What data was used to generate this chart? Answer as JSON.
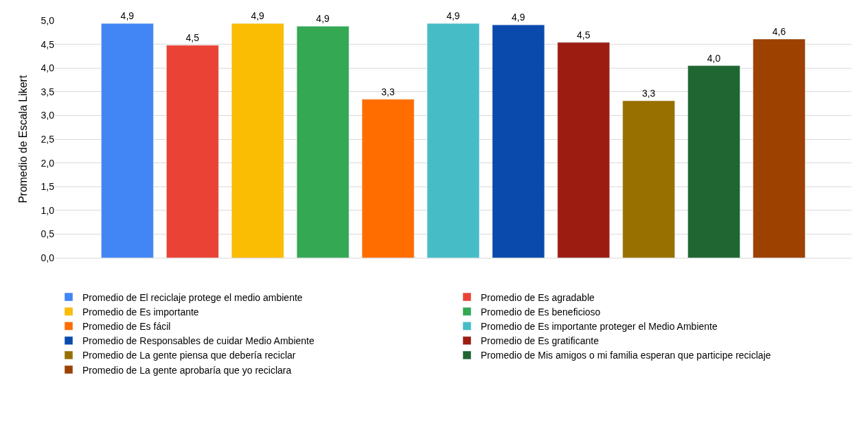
{
  "chart_data": {
    "type": "bar",
    "ylabel": "Promedio de Escala Likert",
    "categories": [
      null
    ],
    "series": [
      {
        "name": "Promedio de El reciclaje protege el medio ambiente",
        "color": "#4285f4",
        "values": [
          4.94
        ],
        "value_labels": [
          "4,9"
        ]
      },
      {
        "name": "Promedio de Es agradable",
        "color": "#ea4335",
        "values": [
          4.48
        ],
        "value_labels": [
          "4,5"
        ]
      },
      {
        "name": "Promedio de Es importante",
        "color": "#fbbc04",
        "values": [
          4.94
        ],
        "value_labels": [
          "4,9"
        ]
      },
      {
        "name": "Promedio de Es beneficioso",
        "color": "#34a853",
        "values": [
          4.88
        ],
        "value_labels": [
          "4,9"
        ]
      },
      {
        "name": "Promedio de Es fácil",
        "color": "#ff6d01",
        "values": [
          3.34
        ],
        "value_labels": [
          "3,3"
        ]
      },
      {
        "name": "Promedio de Es importante proteger el Medio Ambiente",
        "color": "#46bdc6",
        "values": [
          4.94
        ],
        "value_labels": [
          "4,9"
        ]
      },
      {
        "name": "Promedio de Responsables de cuidar Medio Ambiente",
        "color": "#0b4aad",
        "values": [
          4.91
        ],
        "value_labels": [
          "4,9"
        ]
      },
      {
        "name": "Promedio de Es gratificante",
        "color": "#9c1c12",
        "values": [
          4.54
        ],
        "value_labels": [
          "4,5"
        ]
      },
      {
        "name": "Promedio de La gente piensa que debería reciclar",
        "color": "#987000",
        "values": [
          3.31
        ],
        "value_labels": [
          "3,3"
        ]
      },
      {
        "name": "Promedio de Mis amigos o mi familia esperan que participe reciclaje",
        "color": "#1f6632",
        "values": [
          4.05
        ],
        "value_labels": [
          "4,0"
        ]
      },
      {
        "name": "Promedio de La gente aprobaría que yo reciclara",
        "color": "#9c4100",
        "values": [
          4.61
        ],
        "value_labels": [
          "4,6"
        ]
      }
    ],
    "ylim": [
      0,
      5
    ],
    "yticks": [
      {
        "value": 0,
        "label": "0,0"
      },
      {
        "value": 0.5,
        "label": "0,5"
      },
      {
        "value": 1,
        "label": "1,0"
      },
      {
        "value": 1.5,
        "label": "1,5"
      },
      {
        "value": 2,
        "label": "2,0"
      },
      {
        "value": 2.5,
        "label": "2,5"
      },
      {
        "value": 3,
        "label": "3,0"
      },
      {
        "value": 3.5,
        "label": "3,5"
      },
      {
        "value": 4,
        "label": "4,0"
      },
      {
        "value": 4.5,
        "label": "4,5"
      },
      {
        "value": 5,
        "label": "5,0"
      }
    ],
    "grid": "y",
    "legend": "bottom"
  }
}
